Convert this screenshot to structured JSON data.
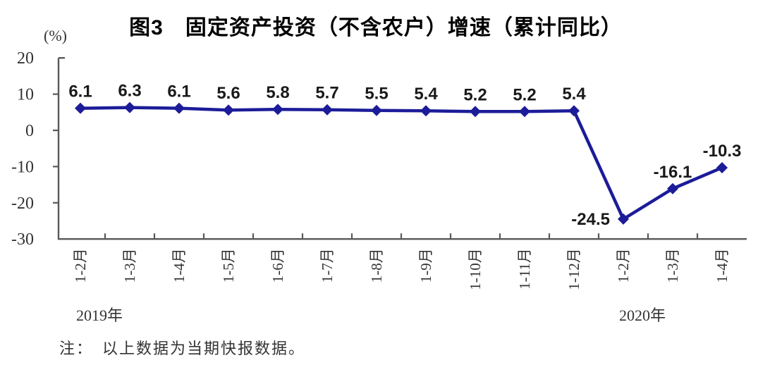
{
  "chart_data": {
    "type": "line",
    "title": "图3　固定资产投资（不含农户）增速（累计同比）",
    "y_unit": "(%)",
    "categories": [
      "1-2月",
      "1-3月",
      "1-4月",
      "1-5月",
      "1-6月",
      "1-7月",
      "1-8月",
      "1-9月",
      "1-10月",
      "1-11月",
      "1-12月",
      "1-2月",
      "1-3月",
      "1-4月"
    ],
    "values": [
      6.1,
      6.3,
      6.1,
      5.6,
      5.8,
      5.7,
      5.5,
      5.4,
      5.2,
      5.2,
      5.4,
      -24.5,
      -16.1,
      -10.3
    ],
    "data_labels": [
      "6.1",
      "6.3",
      "6.1",
      "5.6",
      "5.8",
      "5.7",
      "5.5",
      "5.4",
      "5.2",
      "5.2",
      "5.4",
      "-24.5",
      "-16.1",
      "-10.3"
    ],
    "label_positions": [
      "above",
      "above",
      "above",
      "above",
      "above",
      "above",
      "above",
      "above",
      "above",
      "above",
      "above",
      "left",
      "above",
      "above"
    ],
    "y_ticks": [
      20,
      10,
      0,
      -10,
      -20,
      -30
    ],
    "ylim": [
      -30,
      20
    ],
    "xlabel": "",
    "ylabel": "(%)",
    "grid": "off",
    "legend": "none",
    "year_groups": [
      {
        "label": "2019年",
        "start_index": 0,
        "end_index": 10
      },
      {
        "label": "2020年",
        "start_index": 11,
        "end_index": 13
      }
    ],
    "note": "注：　以上数据为当期快报数据。",
    "colors": {
      "line": "#1c1c99",
      "marker": "#1c1c99",
      "axis": "#595959",
      "tick_label": "#333333",
      "data_label": "#1a1a1a",
      "title": "#000000",
      "background": "#ffffff"
    }
  }
}
